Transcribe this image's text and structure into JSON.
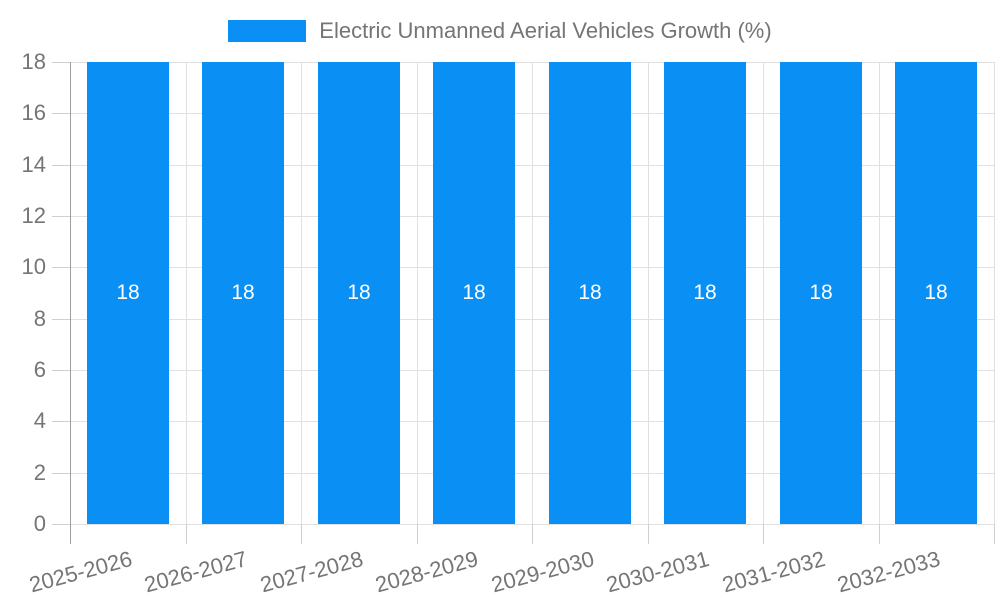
{
  "chart_data": {
    "type": "bar",
    "title": "Electric Unmanned Aerial Vehicles Growth (%)",
    "legend_entries": [
      "Electric Unmanned Aerial Vehicles Growth (%)"
    ],
    "legend_position": "top-center",
    "categories": [
      "2025-2026",
      "2026-2027",
      "2027-2028",
      "2028-2029",
      "2029-2030",
      "2030-2031",
      "2031-2032",
      "2032-2033"
    ],
    "series": [
      {
        "name": "Electric Unmanned Aerial Vehicles Growth (%)",
        "values": [
          18,
          18,
          18,
          18,
          18,
          18,
          18,
          18
        ]
      }
    ],
    "value_labels": [
      "18",
      "18",
      "18",
      "18",
      "18",
      "18",
      "18",
      "18"
    ],
    "xlabel": "",
    "ylabel": "",
    "ylim": [
      0,
      18
    ],
    "yticks": [
      0,
      2,
      4,
      6,
      8,
      10,
      12,
      14,
      16,
      18
    ],
    "grid": "horizontal gridlines at each y tick plus vertical gridlines at category boundaries",
    "x_label_rotation_deg": -15
  },
  "style": {
    "bar_color": "#0a90f5",
    "grid_color": "#e0e0e0",
    "axis_line_color": "#9e9e9e",
    "tick_color": "#cfcfcf",
    "axis_text_color": "#757575",
    "legend_text_color": "#757575",
    "value_label_color": "#ffffff",
    "background_color": "#ffffff"
  }
}
